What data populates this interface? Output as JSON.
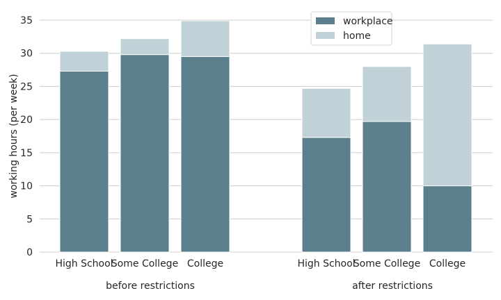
{
  "chart_data": {
    "type": "bar",
    "stacked": true,
    "ylabel": "working hours (per week)",
    "ylim": [
      0,
      35
    ],
    "yticks": [
      0,
      5,
      10,
      15,
      20,
      25,
      30,
      35
    ],
    "grid": "horizontal",
    "legend_position": "top-right",
    "groups": [
      {
        "label": "before restrictions",
        "categories": [
          "High School",
          "Some College",
          "College"
        ]
      },
      {
        "label": "after restrictions",
        "categories": [
          "High School",
          "Some College",
          "College"
        ]
      }
    ],
    "series": [
      {
        "name": "workplace",
        "color": "#5b7f8c",
        "values": [
          27.3,
          29.8,
          29.5,
          17.3,
          19.7,
          10.0
        ]
      },
      {
        "name": "home",
        "color": "#c1d1d8",
        "values": [
          3.0,
          2.4,
          5.4,
          7.4,
          8.3,
          21.4
        ]
      }
    ]
  }
}
